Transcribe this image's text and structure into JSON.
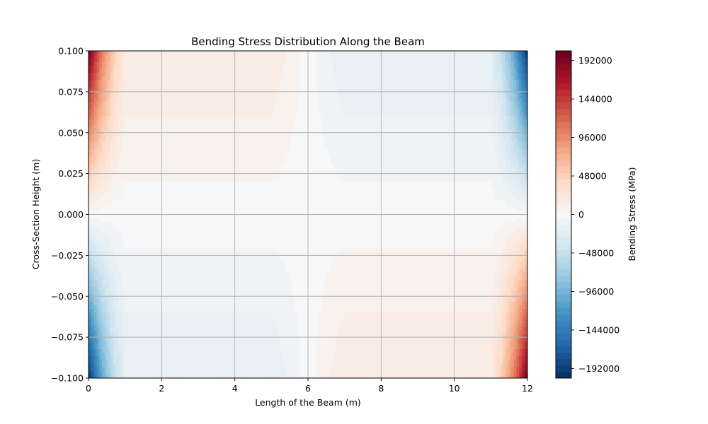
{
  "chart_data": {
    "type": "heatmap",
    "title": "Bending Stress Distribution Along the Beam",
    "xlabel": "Length of the Beam (m)",
    "ylabel": "Cross-Section Height (m)",
    "xlim": [
      0,
      12
    ],
    "ylim": [
      -0.1,
      0.1
    ],
    "x_ticks": [
      0,
      2,
      4,
      6,
      8,
      10,
      12
    ],
    "x_tick_labels": [
      "0",
      "2",
      "4",
      "6",
      "8",
      "10",
      "12"
    ],
    "y_ticks": [
      -0.1,
      -0.075,
      -0.05,
      -0.025,
      0.0,
      0.025,
      0.05,
      0.075,
      0.1
    ],
    "y_tick_labels": [
      "−0.100",
      "−0.075",
      "−0.050",
      "−0.025",
      "0.000",
      "0.025",
      "0.050",
      "0.075",
      "0.100"
    ],
    "grid": true,
    "colormap": "RdBu_r",
    "colorbar": {
      "label": "Bending Stress (MPa)",
      "range": [
        -204000,
        204000
      ],
      "ticks": [
        -192000,
        -144000,
        -96000,
        -48000,
        0,
        48000,
        96000,
        144000,
        192000
      ],
      "tick_labels": [
        "−192000",
        "−144000",
        "−96000",
        "−48000",
        "0",
        "48000",
        "96000",
        "144000",
        "192000"
      ]
    },
    "field": {
      "description_values": "stress = -coef(x) * y / 0.1 * 200000",
      "x_profile": [
        {
          "x": 0.0,
          "coef": -1.0
        },
        {
          "x": 0.35,
          "coef": -0.55
        },
        {
          "x": 0.7,
          "coef": -0.25
        },
        {
          "x": 1.0,
          "coef": -0.1
        },
        {
          "x": 5.0,
          "coef": -0.1
        },
        {
          "x": 6.0,
          "coef": 0.0
        },
        {
          "x": 7.0,
          "coef": 0.1
        },
        {
          "x": 11.0,
          "coef": 0.1
        },
        {
          "x": 11.3,
          "coef": 0.25
        },
        {
          "x": 11.65,
          "coef": 0.55
        },
        {
          "x": 12.0,
          "coef": 1.0
        }
      ]
    }
  },
  "colors": {
    "grid": "#b0b0b0",
    "spine": "#000000"
  }
}
